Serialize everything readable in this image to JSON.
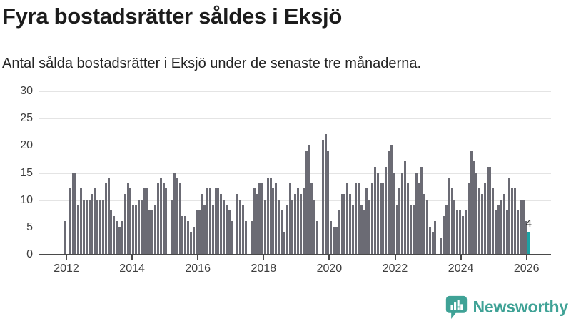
{
  "header": {
    "title": "Fyra bostadsrätter såldes i Eksjö",
    "subtitle": "Antal sålda bostadsrätter i Eksjö under de senaste tre månaderna."
  },
  "chart_data": {
    "type": "bar",
    "title": "Antal sålda bostadsrätter i Eksjö under de senaste tre månaderna",
    "x_start": "2012-01",
    "x_end": "2026-02",
    "frequency": "monthly",
    "values": [
      6,
      0,
      12,
      15,
      15,
      9,
      12,
      10,
      10,
      10,
      11,
      12,
      10,
      10,
      10,
      13,
      14,
      8,
      7,
      6,
      5,
      6,
      11,
      13,
      12,
      9,
      9,
      10,
      10,
      12,
      12,
      8,
      8,
      9,
      13,
      14,
      13,
      12,
      0,
      10,
      15,
      14,
      13,
      7,
      7,
      6,
      4,
      5,
      8,
      8,
      11,
      9,
      12,
      12,
      9,
      12,
      12,
      11,
      10,
      9,
      8,
      6,
      0,
      11,
      10,
      9,
      6,
      0,
      6,
      12,
      11,
      13,
      13,
      10,
      14,
      14,
      12,
      13,
      10,
      8,
      4,
      9,
      13,
      10,
      11,
      12,
      11,
      12,
      19,
      20,
      13,
      10,
      6,
      0,
      21,
      22,
      19,
      6,
      5,
      5,
      8,
      11,
      11,
      13,
      11,
      9,
      13,
      13,
      9,
      8,
      12,
      10,
      13,
      16,
      15,
      13,
      13,
      16,
      19,
      20,
      15,
      9,
      12,
      15,
      17,
      13,
      9,
      9,
      15,
      13,
      16,
      11,
      10,
      5,
      4,
      6,
      0,
      3,
      7,
      9,
      14,
      12,
      10,
      8,
      8,
      7,
      8,
      13,
      19,
      17,
      15,
      12,
      11,
      13,
      16,
      16,
      12,
      8,
      9,
      10,
      11,
      8,
      14,
      12,
      12,
      8,
      10,
      10,
      6,
      4
    ],
    "highlight_index": 169,
    "highlight_value_label": "4",
    "yticks": [
      0,
      5,
      10,
      15,
      20,
      25,
      30
    ],
    "xticks": [
      "2012",
      "2014",
      "2016",
      "2018",
      "2020",
      "2022",
      "2024",
      "2026"
    ],
    "ylim": [
      0,
      30
    ],
    "grid": true,
    "legend": "none",
    "colors": {
      "bar": "#6B6B74",
      "highlight": "#1CA2A4",
      "grid": "#E4E4E4",
      "axis": "#4A4A4A",
      "axis_text": "#3E3E3E"
    }
  },
  "footer": {
    "brand": "Newsworthy",
    "brand_color": "#3FA296",
    "logo_icon": "speech-bubble-bar-chart"
  }
}
